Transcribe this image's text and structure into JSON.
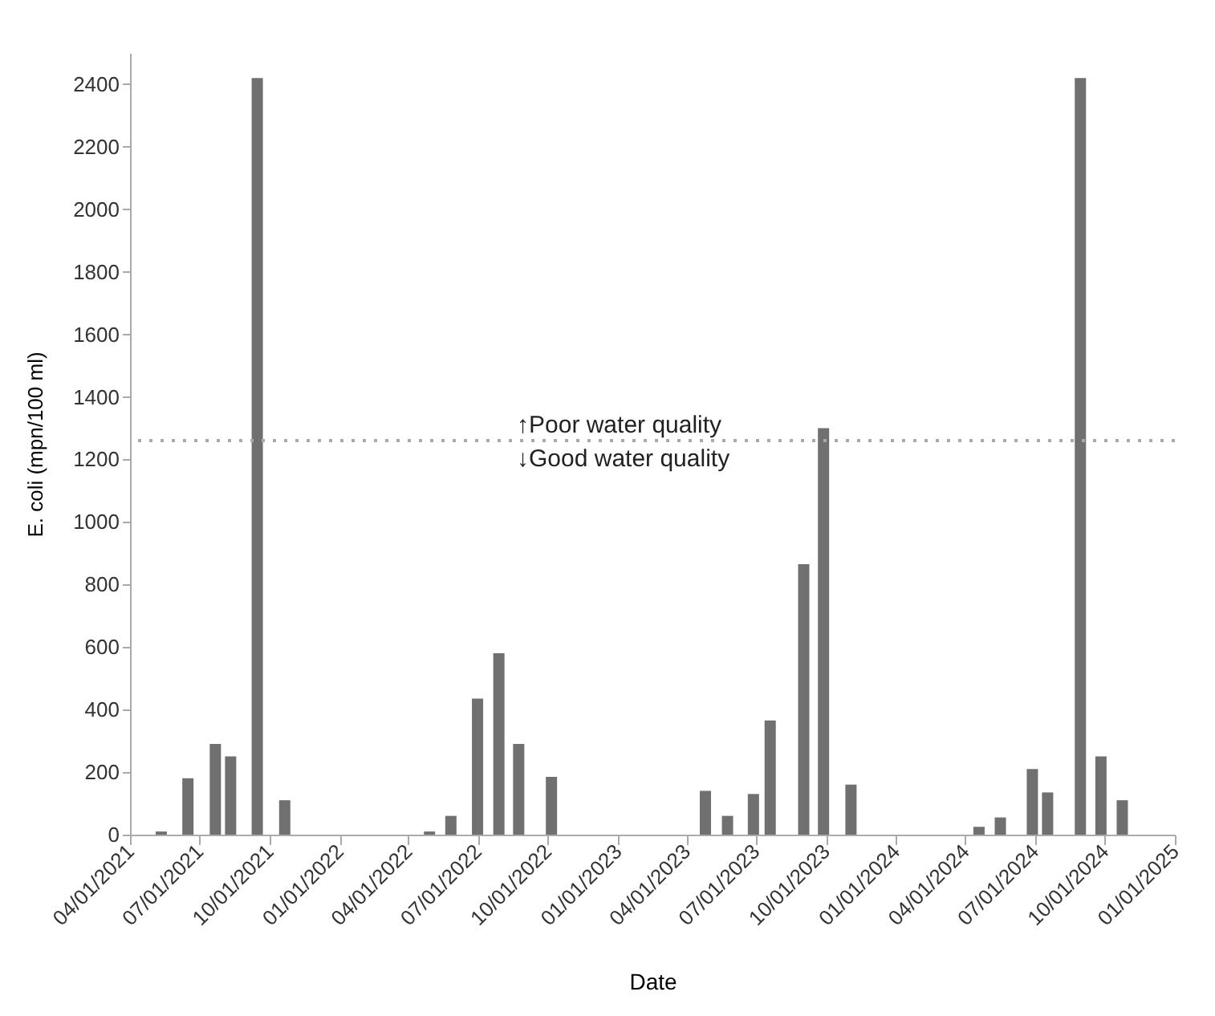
{
  "chart_data": {
    "type": "bar",
    "xlabel": "Date",
    "ylabel": "E. coli (mpn/100 ml)",
    "x": [
      "2021-05-12",
      "2021-06-16",
      "2021-07-22",
      "2021-08-11",
      "2021-09-15",
      "2021-10-21",
      "2022-04-29",
      "2022-05-27",
      "2022-07-01",
      "2022-07-29",
      "2022-08-24",
      "2022-10-06",
      "2023-04-26",
      "2023-05-25",
      "2023-06-28",
      "2023-07-20",
      "2023-09-02",
      "2023-09-28",
      "2023-11-03",
      "2024-04-19",
      "2024-05-17",
      "2024-06-28",
      "2024-07-18",
      "2024-08-30",
      "2024-09-26",
      "2024-10-24"
    ],
    "series": [
      {
        "color": "#707070",
        "values": [
          10,
          180,
          290,
          250,
          2420,
          110,
          10,
          60,
          435,
          580,
          290,
          185,
          140,
          60,
          130,
          365,
          865,
          1300,
          160,
          25,
          55,
          210,
          135,
          2420,
          250,
          110
        ]
      }
    ],
    "xlim": [
      "2021-04-01",
      "2025-01-01"
    ],
    "xticks": [
      {
        "value": "2021-04-01",
        "label": "04/01/2021"
      },
      {
        "value": "2021-07-01",
        "label": "07/01/2021"
      },
      {
        "value": "2021-10-01",
        "label": "10/01/2021"
      },
      {
        "value": "2022-01-01",
        "label": "01/01/2022"
      },
      {
        "value": "2022-04-01",
        "label": "04/01/2022"
      },
      {
        "value": "2022-07-01",
        "label": "07/01/2022"
      },
      {
        "value": "2022-10-01",
        "label": "10/01/2022"
      },
      {
        "value": "2023-01-01",
        "label": "01/01/2023"
      },
      {
        "value": "2023-04-01",
        "label": "04/01/2023"
      },
      {
        "value": "2023-07-01",
        "label": "07/01/2023"
      },
      {
        "value": "2023-10-01",
        "label": "10/01/2023"
      },
      {
        "value": "2024-01-01",
        "label": "01/01/2024"
      },
      {
        "value": "2024-04-01",
        "label": "04/01/2024"
      },
      {
        "value": "2024-07-01",
        "label": "07/01/2024"
      },
      {
        "value": "2024-10-01",
        "label": "10/01/2024"
      },
      {
        "value": "2025-01-01",
        "label": "01/01/2025"
      }
    ],
    "ylim": [
      0,
      2500
    ],
    "yticks": [
      0,
      200,
      400,
      600,
      800,
      1000,
      1200,
      1400,
      1600,
      1800,
      2000,
      2200,
      2400
    ],
    "grid": false,
    "legend": false,
    "ref_lines": [
      {
        "axis": "y",
        "value": 1260,
        "color": "#aaaaaa",
        "line_style": "dotted"
      }
    ],
    "annotations": [
      "↑Poor water quality",
      "↓Good water quality"
    ]
  }
}
